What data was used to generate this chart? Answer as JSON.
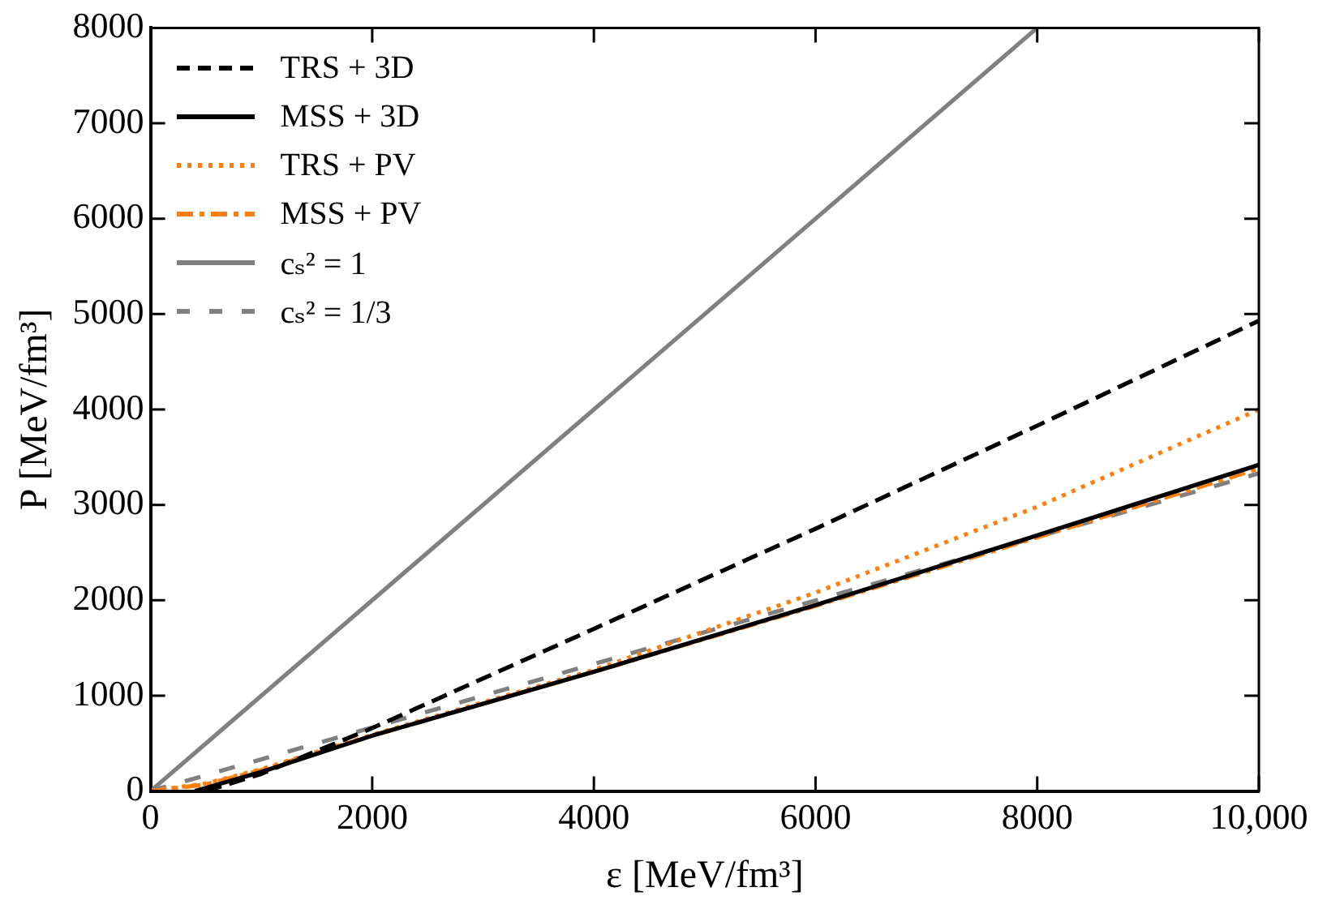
{
  "chart_data": {
    "type": "line",
    "xlabel": "ε [MeV/fm³]",
    "ylabel": "P [MeV/fm³]",
    "xlim": [
      0,
      10000
    ],
    "ylim": [
      0,
      8000
    ],
    "xticks": [
      0,
      2000,
      4000,
      6000,
      8000,
      {
        "value": 10000,
        "label": "10,000"
      }
    ],
    "yticks": [
      0,
      1000,
      2000,
      3000,
      4000,
      5000,
      6000,
      7000,
      8000
    ],
    "grid": false,
    "legend": "top left",
    "marker": "none",
    "series": [
      {
        "name": "TRS + 3D",
        "color": "#000000",
        "line_style": "dashed",
        "x": [
          500,
          1000,
          2000,
          4000,
          6000,
          8000,
          10000
        ],
        "values": [
          0,
          180,
          660,
          1700,
          2750,
          3830,
          4930
        ]
      },
      {
        "name": "MSS + 3D",
        "color": "#000000",
        "line_style": "solid",
        "x": [
          400,
          1000,
          2000,
          4000,
          6000,
          8000,
          10000
        ],
        "values": [
          0,
          200,
          580,
          1250,
          1950,
          2680,
          3420
        ]
      },
      {
        "name": "TRS + PV",
        "color": "#ff7f0e",
        "line_style": "dotted",
        "x": [
          0,
          500,
          1000,
          2000,
          4000,
          6000,
          8000,
          10000
        ],
        "values": [
          0,
          80,
          230,
          590,
          1270,
          2080,
          2980,
          4000
        ]
      },
      {
        "name": "MSS + PV",
        "color": "#ff7f0e",
        "line_style": "dashdot",
        "x": [
          0,
          500,
          1000,
          2000,
          4000,
          6000,
          8000,
          10000
        ],
        "values": [
          0,
          70,
          220,
          580,
          1250,
          1940,
          2660,
          3380
        ]
      },
      {
        "name": "cₛ² = 1",
        "color": "#808080",
        "line_style": "solid",
        "x": [
          0,
          8000
        ],
        "values": [
          0,
          8000
        ]
      },
      {
        "name": "cₛ² = 1/3",
        "color": "#808080",
        "line_style": "longdashed",
        "x": [
          0,
          10000
        ],
        "values": [
          0,
          3330
        ]
      }
    ]
  }
}
